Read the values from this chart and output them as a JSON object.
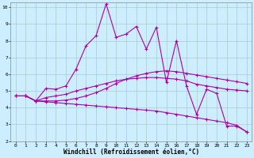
{
  "background_color": "#cceeff",
  "grid_color": "#aacccc",
  "line_color": "#aa00aa",
  "marker": "+",
  "marker_size": 3,
  "marker_lw": 0.8,
  "line_width": 0.8,
  "xlim": [
    -0.5,
    23.5
  ],
  "ylim": [
    2,
    10.3
  ],
  "xticks": [
    0,
    1,
    2,
    3,
    4,
    5,
    6,
    7,
    8,
    9,
    10,
    11,
    12,
    13,
    14,
    15,
    16,
    17,
    18,
    19,
    20,
    21,
    22,
    23
  ],
  "yticks": [
    2,
    3,
    4,
    5,
    6,
    7,
    8,
    9,
    10
  ],
  "xlabel": "Windchill (Refroidissement éolien,°C)",
  "axis_fontsize": 5.5,
  "tick_fontsize": 4.5,
  "series1_x": [
    1,
    2,
    3,
    4,
    5,
    6,
    7,
    8,
    9,
    10,
    11,
    12,
    13,
    14,
    15,
    16,
    17,
    18,
    19,
    20,
    21,
    22,
    23
  ],
  "series1_y": [
    4.7,
    4.4,
    5.15,
    5.1,
    5.3,
    6.3,
    7.7,
    8.3,
    10.2,
    8.2,
    8.4,
    8.85,
    7.5,
    8.8,
    5.5,
    8.0,
    5.3,
    3.6,
    5.1,
    4.85,
    2.9,
    2.9,
    2.55
  ],
  "series2_x": [
    0,
    1,
    2,
    3,
    4,
    5,
    6,
    7,
    8,
    9,
    10,
    11,
    12,
    13,
    14,
    15,
    16,
    17,
    18,
    19,
    20,
    21,
    22,
    23
  ],
  "series2_y": [
    4.7,
    4.7,
    4.4,
    4.6,
    4.7,
    4.8,
    5.0,
    5.15,
    5.3,
    5.45,
    5.6,
    5.7,
    5.75,
    5.8,
    5.8,
    5.75,
    5.7,
    5.6,
    5.4,
    5.3,
    5.2,
    5.1,
    5.05,
    5.0
  ],
  "series3_x": [
    0,
    1,
    2,
    3,
    4,
    5,
    6,
    7,
    8,
    9,
    10,
    11,
    12,
    13,
    14,
    15,
    16,
    17,
    18,
    19,
    20,
    21,
    22,
    23
  ],
  "series3_y": [
    4.7,
    4.7,
    4.4,
    4.35,
    4.3,
    4.25,
    4.2,
    4.15,
    4.1,
    4.05,
    4.0,
    3.95,
    3.9,
    3.85,
    3.8,
    3.7,
    3.6,
    3.5,
    3.4,
    3.3,
    3.2,
    3.1,
    2.95,
    2.55
  ],
  "series4_x": [
    0,
    1,
    2,
    3,
    4,
    5,
    6,
    7,
    8,
    9,
    10,
    11,
    12,
    13,
    14,
    15,
    16,
    17,
    18,
    19,
    20,
    21,
    22,
    23
  ],
  "series4_y": [
    4.7,
    4.7,
    4.4,
    4.4,
    4.4,
    4.45,
    4.55,
    4.7,
    4.9,
    5.15,
    5.45,
    5.7,
    5.9,
    6.05,
    6.15,
    6.2,
    6.15,
    6.05,
    5.95,
    5.85,
    5.75,
    5.65,
    5.55,
    5.45
  ]
}
